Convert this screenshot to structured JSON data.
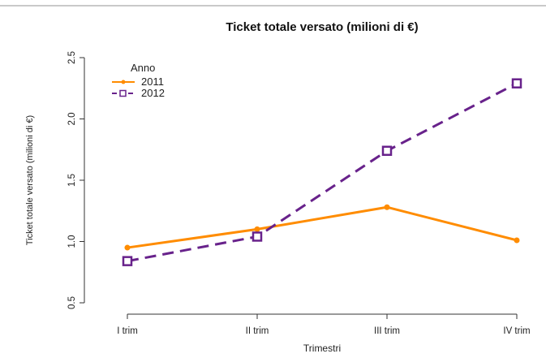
{
  "chart_data": {
    "type": "line",
    "title": "Ticket totale versato (milioni di €)",
    "xlabel": "Trimestri",
    "ylabel": "Ticket totale versato (milioni di €)",
    "categories": [
      "I trim",
      "II trim",
      "III trim",
      "IV trim"
    ],
    "ylim": [
      0.5,
      2.5
    ],
    "yticks": [
      "0.5",
      "1.0",
      "1.5",
      "2.0",
      "2.5"
    ],
    "legend": {
      "title": "Anno",
      "placement": "top-left"
    },
    "grid": false,
    "series": [
      {
        "name": "2011",
        "values": [
          0.95,
          1.1,
          1.28,
          1.01
        ],
        "color": "#ff8c00",
        "style": "solid",
        "marker": "dot"
      },
      {
        "name": "2012",
        "values": [
          0.84,
          1.04,
          1.74,
          2.29
        ],
        "color": "#68228b",
        "style": "dashed",
        "marker": "square"
      }
    ]
  }
}
